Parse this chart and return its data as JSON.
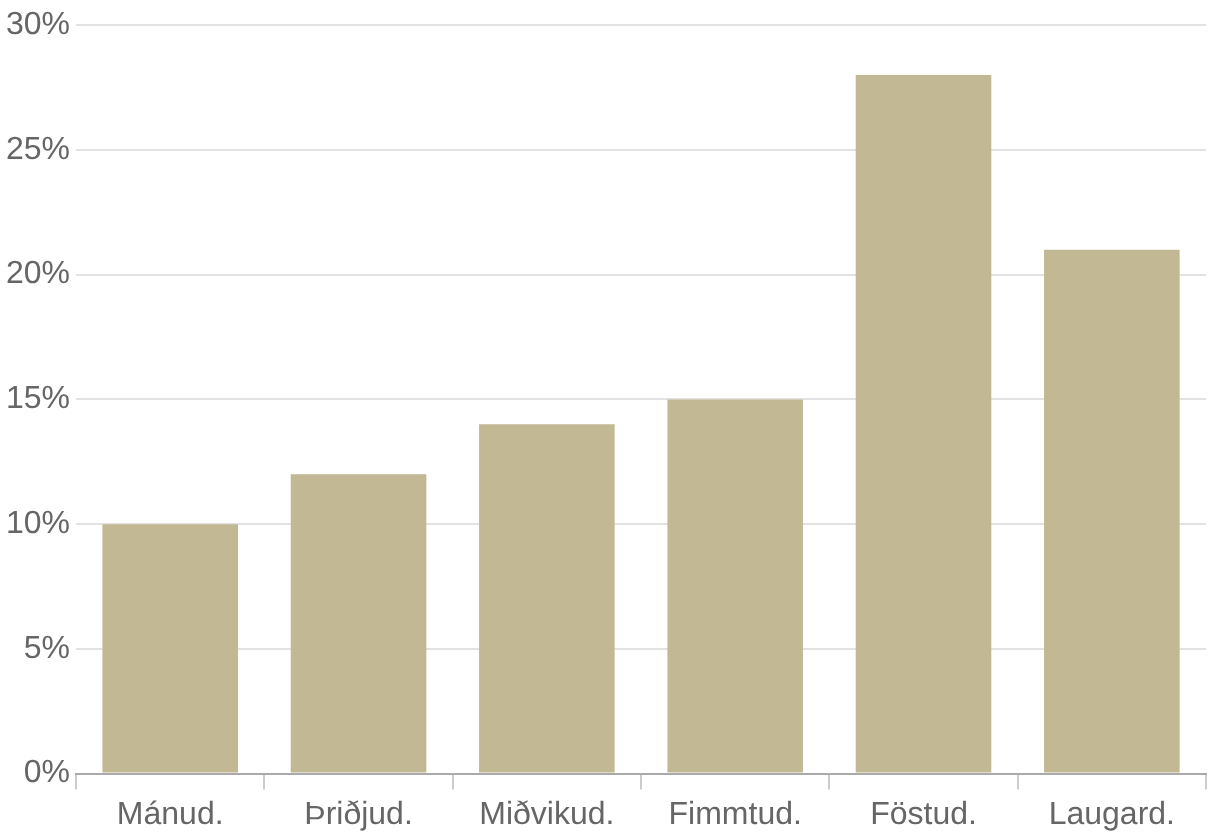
{
  "chart_data": {
    "type": "bar",
    "categories": [
      "Mánud.",
      "Þriðjud.",
      "Miðvikud.",
      "Fimmtud.",
      "Föstud.",
      "Laugard."
    ],
    "values": [
      10,
      12,
      14,
      15,
      28,
      21
    ],
    "color": "#c2b994",
    "ylim": [
      0,
      30
    ],
    "yticks": [
      {
        "value": 0,
        "label": "0%"
      },
      {
        "value": 5,
        "label": "5%"
      },
      {
        "value": 10,
        "label": "10%"
      },
      {
        "value": 15,
        "label": "15%"
      },
      {
        "value": 20,
        "label": "20%"
      },
      {
        "value": 25,
        "label": "25%"
      },
      {
        "value": 30,
        "label": "30%"
      }
    ],
    "grid": "y",
    "legend": false
  }
}
